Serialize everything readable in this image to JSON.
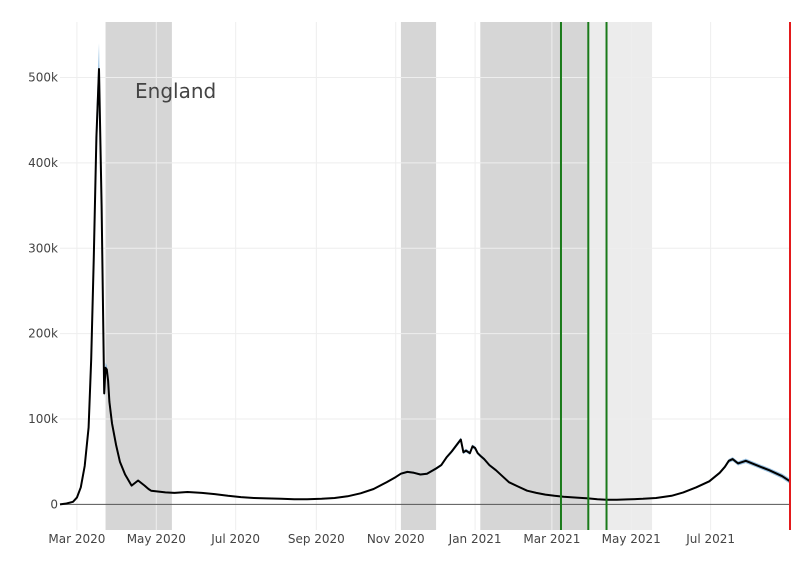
{
  "chart_data": {
    "type": "line",
    "title": "",
    "xlabel": "",
    "ylabel": "",
    "annotation": "England",
    "xlim": [
      "2020-02-17",
      "2021-08-31"
    ],
    "ylim": [
      -30000,
      565000
    ],
    "grid": true,
    "x_ticks": [
      {
        "date": "2020-03-01",
        "label": "Mar 2020"
      },
      {
        "date": "2020-05-01",
        "label": "May 2020"
      },
      {
        "date": "2020-07-01",
        "label": "Jul 2020"
      },
      {
        "date": "2020-09-01",
        "label": "Sep 2020"
      },
      {
        "date": "2020-11-01",
        "label": "Nov 2020"
      },
      {
        "date": "2021-01-01",
        "label": "Jan 2021"
      },
      {
        "date": "2021-03-01",
        "label": "Mar 2021"
      },
      {
        "date": "2021-05-01",
        "label": "May 2021"
      },
      {
        "date": "2021-07-01",
        "label": "Jul 2021"
      }
    ],
    "y_ticks": [
      {
        "value": 0,
        "label": "0"
      },
      {
        "value": 100000,
        "label": "100k"
      },
      {
        "value": 200000,
        "label": "200k"
      },
      {
        "value": 300000,
        "label": "300k"
      },
      {
        "value": 400000,
        "label": "400k"
      },
      {
        "value": 500000,
        "label": "500k"
      }
    ],
    "shaded_periods": [
      {
        "start": "2020-03-23",
        "end": "2020-05-13",
        "shade": "dark"
      },
      {
        "start": "2020-11-05",
        "end": "2020-12-02",
        "shade": "dark"
      },
      {
        "start": "2021-01-05",
        "end": "2021-03-29",
        "shade": "dark"
      },
      {
        "start": "2021-03-29",
        "end": "2021-05-17",
        "shade": "light"
      }
    ],
    "vertical_lines": [
      {
        "date": "2021-03-08",
        "color": "#1a7a1a"
      },
      {
        "date": "2021-03-29",
        "color": "#1a7a1a"
      },
      {
        "date": "2021-04-12",
        "color": "#1a7a1a"
      },
      {
        "date": "2021-08-31",
        "color": "#e31a1c"
      }
    ],
    "colors": {
      "line": "#000000",
      "band": "#7fb2d9",
      "shade_dark": "#d6d6d6",
      "shade_light": "#ececec",
      "grid": "#eeeeee",
      "zero_line": "#555555"
    },
    "series": [
      {
        "x": [
          "2020-02-17",
          "2020-02-22",
          "2020-02-27",
          "2020-03-01",
          "2020-03-04",
          "2020-03-07",
          "2020-03-10",
          "2020-03-12",
          "2020-03-14",
          "2020-03-16",
          "2020-03-18",
          "2020-03-20",
          "2020-03-22",
          "2020-03-23",
          "2020-03-24",
          "2020-03-25",
          "2020-03-26",
          "2020-03-28",
          "2020-03-31",
          "2020-04-03",
          "2020-04-07",
          "2020-04-12",
          "2020-04-17",
          "2020-04-22",
          "2020-04-25",
          "2020-04-27",
          "2020-05-03",
          "2020-05-08",
          "2020-05-15",
          "2020-05-25",
          "2020-06-05",
          "2020-06-15",
          "2020-06-25",
          "2020-07-05",
          "2020-07-15",
          "2020-07-25",
          "2020-08-05",
          "2020-08-15",
          "2020-08-25",
          "2020-09-05",
          "2020-09-15",
          "2020-09-25",
          "2020-10-05",
          "2020-10-15",
          "2020-10-25",
          "2020-11-01",
          "2020-11-05",
          "2020-11-10",
          "2020-11-15",
          "2020-11-20",
          "2020-11-25",
          "2020-12-02",
          "2020-12-06",
          "2020-12-10",
          "2020-12-14",
          "2020-12-18",
          "2020-12-21",
          "2020-12-23",
          "2020-12-25",
          "2020-12-28",
          "2020-12-30",
          "2021-01-01",
          "2021-01-03",
          "2021-01-05",
          "2021-01-08",
          "2021-01-12",
          "2021-01-17",
          "2021-01-22",
          "2021-01-27",
          "2021-02-03",
          "2021-02-10",
          "2021-02-17",
          "2021-02-24",
          "2021-03-03",
          "2021-03-10",
          "2021-03-20",
          "2021-03-29",
          "2021-04-05",
          "2021-04-12",
          "2021-04-20",
          "2021-04-28",
          "2021-05-10",
          "2021-05-20",
          "2021-06-01",
          "2021-06-10",
          "2021-06-20",
          "2021-06-30",
          "2021-07-08",
          "2021-07-12",
          "2021-07-15",
          "2021-07-18",
          "2021-07-22",
          "2021-07-28",
          "2021-08-05",
          "2021-08-15",
          "2021-08-25",
          "2021-08-31"
        ],
        "y": [
          0,
          1000,
          3000,
          8000,
          20000,
          45000,
          90000,
          170000,
          290000,
          430000,
          510000,
          350000,
          130000,
          160000,
          158000,
          145000,
          120000,
          95000,
          70000,
          50000,
          35000,
          22000,
          28000,
          22000,
          18000,
          16000,
          15000,
          14000,
          13500,
          14500,
          13500,
          12000,
          10000,
          8500,
          7500,
          7000,
          6500,
          6000,
          6000,
          6500,
          7500,
          9500,
          13000,
          18000,
          26000,
          32000,
          36000,
          38000,
          37000,
          35000,
          36000,
          42000,
          46000,
          55000,
          62000,
          70000,
          76000,
          61000,
          63000,
          60000,
          68000,
          66000,
          60000,
          57000,
          53000,
          46000,
          40000,
          33000,
          26000,
          21000,
          16000,
          13500,
          11500,
          10000,
          9000,
          8000,
          7000,
          6000,
          5500,
          5500,
          5800,
          6500,
          7500,
          10000,
          14000,
          20000,
          27000,
          37000,
          44000,
          51000,
          53000,
          48000,
          51000,
          46000,
          40000,
          33000,
          27000
        ],
        "band_halfwidth": [
          0,
          500,
          1000,
          1500,
          2500,
          4000,
          8000,
          12000,
          20000,
          28000,
          30000,
          20000,
          6000,
          6000,
          5000,
          4000,
          3000,
          2500,
          2000,
          1800,
          1500,
          1200,
          1200,
          1000,
          900,
          800,
          700,
          700,
          600,
          600,
          600,
          500,
          500,
          500,
          400,
          400,
          400,
          400,
          400,
          400,
          500,
          500,
          600,
          800,
          1000,
          1100,
          1200,
          1200,
          1200,
          1200,
          1200,
          1400,
          1500,
          1800,
          2000,
          2200,
          2400,
          2100,
          2100,
          2000,
          2200,
          2200,
          2000,
          1900,
          1800,
          1600,
          1400,
          1200,
          1000,
          900,
          800,
          700,
          600,
          600,
          500,
          500,
          500,
          500,
          500,
          500,
          500,
          500,
          500,
          600,
          800,
          1000,
          1200,
          1500,
          1800,
          2200,
          2400,
          2400,
          2600,
          2600,
          2600,
          2800,
          3000
        ]
      }
    ]
  }
}
